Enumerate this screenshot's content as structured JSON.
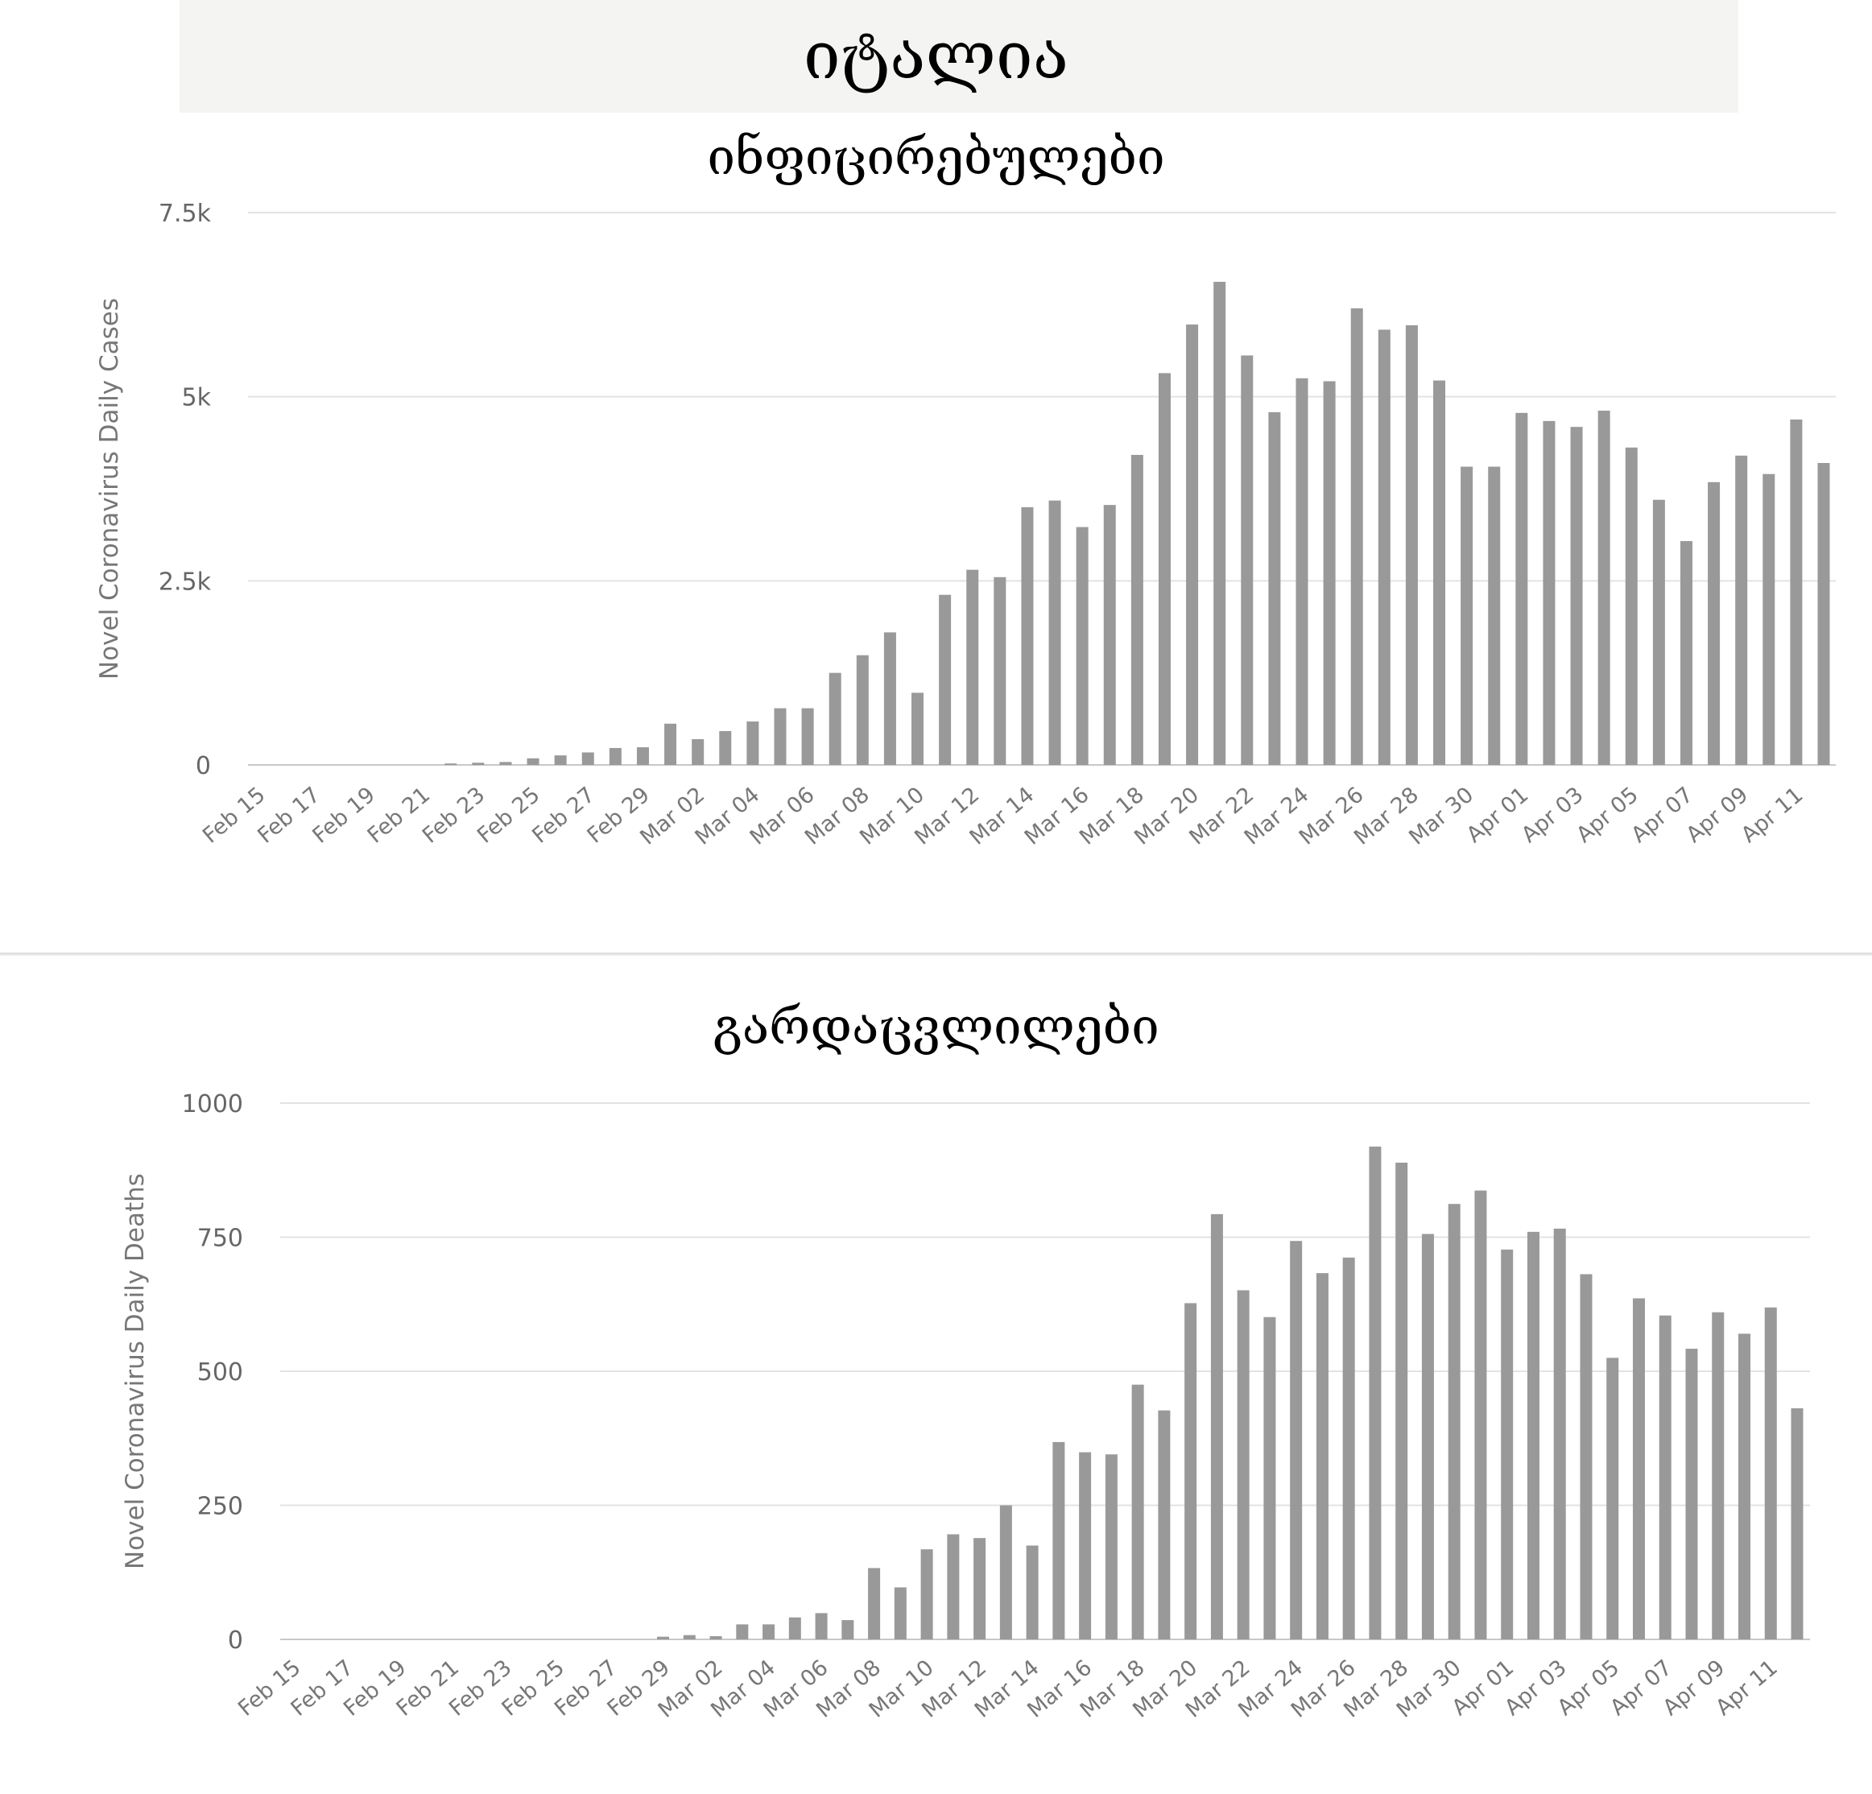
{
  "page": {
    "title": "იტალია"
  },
  "chart_data": [
    {
      "type": "bar",
      "title": "ინფიცირებულები",
      "ylabel": "Novel Coronavirus Daily Cases",
      "xlabel": "",
      "ylim": [
        0,
        7500
      ],
      "yticks": [
        "0",
        "2.5k",
        "5k",
        "7.5k"
      ],
      "ytick_values": [
        0,
        2500,
        5000,
        7500
      ],
      "grid": true,
      "color": "#999999",
      "categories": [
        "Feb 15",
        "Feb 16",
        "Feb 17",
        "Feb 18",
        "Feb 19",
        "Feb 20",
        "Feb 21",
        "Feb 22",
        "Feb 23",
        "Feb 24",
        "Feb 25",
        "Feb 26",
        "Feb 27",
        "Feb 28",
        "Feb 29",
        "Mar 01",
        "Mar 02",
        "Mar 03",
        "Mar 04",
        "Mar 05",
        "Mar 06",
        "Mar 07",
        "Mar 08",
        "Mar 09",
        "Mar 10",
        "Mar 11",
        "Mar 12",
        "Mar 13",
        "Mar 14",
        "Mar 15",
        "Mar 16",
        "Mar 17",
        "Mar 18",
        "Mar 19",
        "Mar 20",
        "Mar 21",
        "Mar 22",
        "Mar 23",
        "Mar 24",
        "Mar 25",
        "Mar 26",
        "Mar 27",
        "Mar 28",
        "Mar 29",
        "Mar 30",
        "Mar 31",
        "Apr 01",
        "Apr 02",
        "Apr 03",
        "Apr 04",
        "Apr 05",
        "Apr 06",
        "Apr 07",
        "Apr 08",
        "Apr 09",
        "Apr 10",
        "Apr 11",
        "Apr 12"
      ],
      "xtick_labels": [
        "Feb 15",
        "Feb 17",
        "Feb 19",
        "Feb 21",
        "Feb 23",
        "Feb 25",
        "Feb 27",
        "Feb 29",
        "Mar 02",
        "Mar 04",
        "Mar 06",
        "Mar 08",
        "Mar 10",
        "Mar 12",
        "Mar 14",
        "Mar 16",
        "Mar 18",
        "Mar 20",
        "Mar 22",
        "Mar 24",
        "Mar 26",
        "Mar 28",
        "Mar 30",
        "Apr 01",
        "Apr 03",
        "Apr 05",
        "Apr 07",
        "Apr 09",
        "Apr 11"
      ],
      "values": [
        0,
        0,
        0,
        0,
        0,
        0,
        0,
        20,
        30,
        40,
        90,
        130,
        170,
        230,
        240,
        560,
        350,
        460,
        590,
        770,
        770,
        1250,
        1490,
        1800,
        980,
        2310,
        2650,
        2550,
        3500,
        3590,
        3230,
        3530,
        4210,
        5320,
        5980,
        6560,
        5560,
        4790,
        5250,
        5210,
        6200,
        5910,
        5970,
        5220,
        4050,
        4050,
        4780,
        4670,
        4590,
        4810,
        4310,
        3600,
        3040,
        3840,
        4200,
        3950,
        4690,
        4100
      ]
    },
    {
      "type": "bar",
      "title": "გარდაცვლილები",
      "ylabel": "Novel Coronavirus Daily Deaths",
      "xlabel": "",
      "ylim": [
        0,
        1000
      ],
      "yticks": [
        "0",
        "250",
        "500",
        "750",
        "1000"
      ],
      "ytick_values": [
        0,
        250,
        500,
        750,
        1000
      ],
      "grid": true,
      "color": "#999999",
      "categories": [
        "Feb 15",
        "Feb 16",
        "Feb 17",
        "Feb 18",
        "Feb 19",
        "Feb 20",
        "Feb 21",
        "Feb 22",
        "Feb 23",
        "Feb 24",
        "Feb 25",
        "Feb 26",
        "Feb 27",
        "Feb 28",
        "Feb 29",
        "Mar 01",
        "Mar 02",
        "Mar 03",
        "Mar 04",
        "Mar 05",
        "Mar 06",
        "Mar 07",
        "Mar 08",
        "Mar 09",
        "Mar 10",
        "Mar 11",
        "Mar 12",
        "Mar 13",
        "Mar 14",
        "Mar 15",
        "Mar 16",
        "Mar 17",
        "Mar 18",
        "Mar 19",
        "Mar 20",
        "Mar 21",
        "Mar 22",
        "Mar 23",
        "Mar 24",
        "Mar 25",
        "Mar 26",
        "Mar 27",
        "Mar 28",
        "Mar 29",
        "Mar 30",
        "Mar 31",
        "Apr 01",
        "Apr 02",
        "Apr 03",
        "Apr 04",
        "Apr 05",
        "Apr 06",
        "Apr 07",
        "Apr 08",
        "Apr 09",
        "Apr 10",
        "Apr 11",
        "Apr 12"
      ],
      "xtick_labels": [
        "Feb 15",
        "Feb 17",
        "Feb 19",
        "Feb 21",
        "Feb 23",
        "Feb 25",
        "Feb 27",
        "Feb 29",
        "Mar 02",
        "Mar 04",
        "Mar 06",
        "Mar 08",
        "Mar 10",
        "Mar 12",
        "Mar 14",
        "Mar 16",
        "Mar 18",
        "Mar 20",
        "Mar 22",
        "Mar 24",
        "Mar 26",
        "Mar 28",
        "Mar 30",
        "Apr 01",
        "Apr 03",
        "Apr 05",
        "Apr 07",
        "Apr 09",
        "Apr 11"
      ],
      "values": [
        0,
        0,
        0,
        0,
        0,
        0,
        0,
        0,
        0,
        0,
        0,
        0,
        0,
        0,
        5,
        8,
        6,
        28,
        28,
        41,
        49,
        36,
        133,
        97,
        168,
        196,
        189,
        250,
        175,
        368,
        349,
        345,
        475,
        427,
        627,
        793,
        651,
        601,
        743,
        683,
        712,
        919,
        889,
        756,
        812,
        837,
        727,
        760,
        766,
        681,
        525,
        636,
        604,
        542,
        610,
        570,
        619,
        431
      ]
    }
  ]
}
